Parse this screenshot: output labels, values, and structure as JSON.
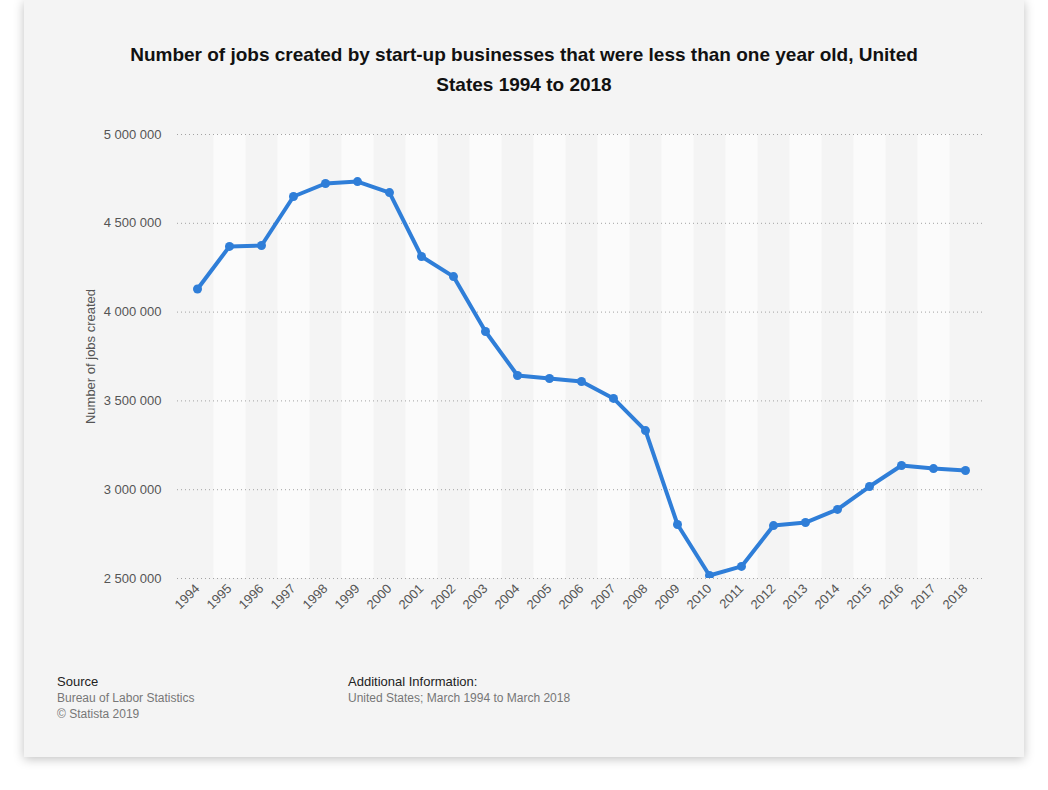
{
  "chart_data": {
    "type": "line",
    "title": "Number of jobs created by start-up businesses that were less than one year old, United States 1994 to 2018",
    "y_label": "Number of jobs created",
    "categories": [
      "1994",
      "1995",
      "1996",
      "1997",
      "1998",
      "1999",
      "2000",
      "2001",
      "2002",
      "2003",
      "2004",
      "2005",
      "2006",
      "2007",
      "2008",
      "2009",
      "2010",
      "2011",
      "2012",
      "2013",
      "2014",
      "2015",
      "2016",
      "2017",
      "2018"
    ],
    "values": [
      4130000,
      4370000,
      4375000,
      4651000,
      4724000,
      4735000,
      4673000,
      4313000,
      4200000,
      3891000,
      3643000,
      3626000,
      3609000,
      3514000,
      3333000,
      2804000,
      2517000,
      2568000,
      2798000,
      2815000,
      2889000,
      3018000,
      3136000,
      3119000,
      3108000
    ],
    "color": "#2f7ed8",
    "marker": "circle",
    "grid": true,
    "ylim": [
      2500000,
      5000000
    ],
    "yticks": [
      {
        "value": 2500000,
        "label": "2 500 000"
      },
      {
        "value": 3000000,
        "label": "3 000 000"
      },
      {
        "value": 3500000,
        "label": "3 500 000"
      },
      {
        "value": 4000000,
        "label": "4 000 000"
      },
      {
        "value": 4500000,
        "label": "4 500 000"
      },
      {
        "value": 5000000,
        "label": "5 000 000"
      }
    ],
    "source_label": "Source",
    "source": "Bureau of Labor Statistics",
    "copyright": "© Statista 2019",
    "info_label": "Additional Information:",
    "info": "United States; March 1994 to March 2018"
  }
}
